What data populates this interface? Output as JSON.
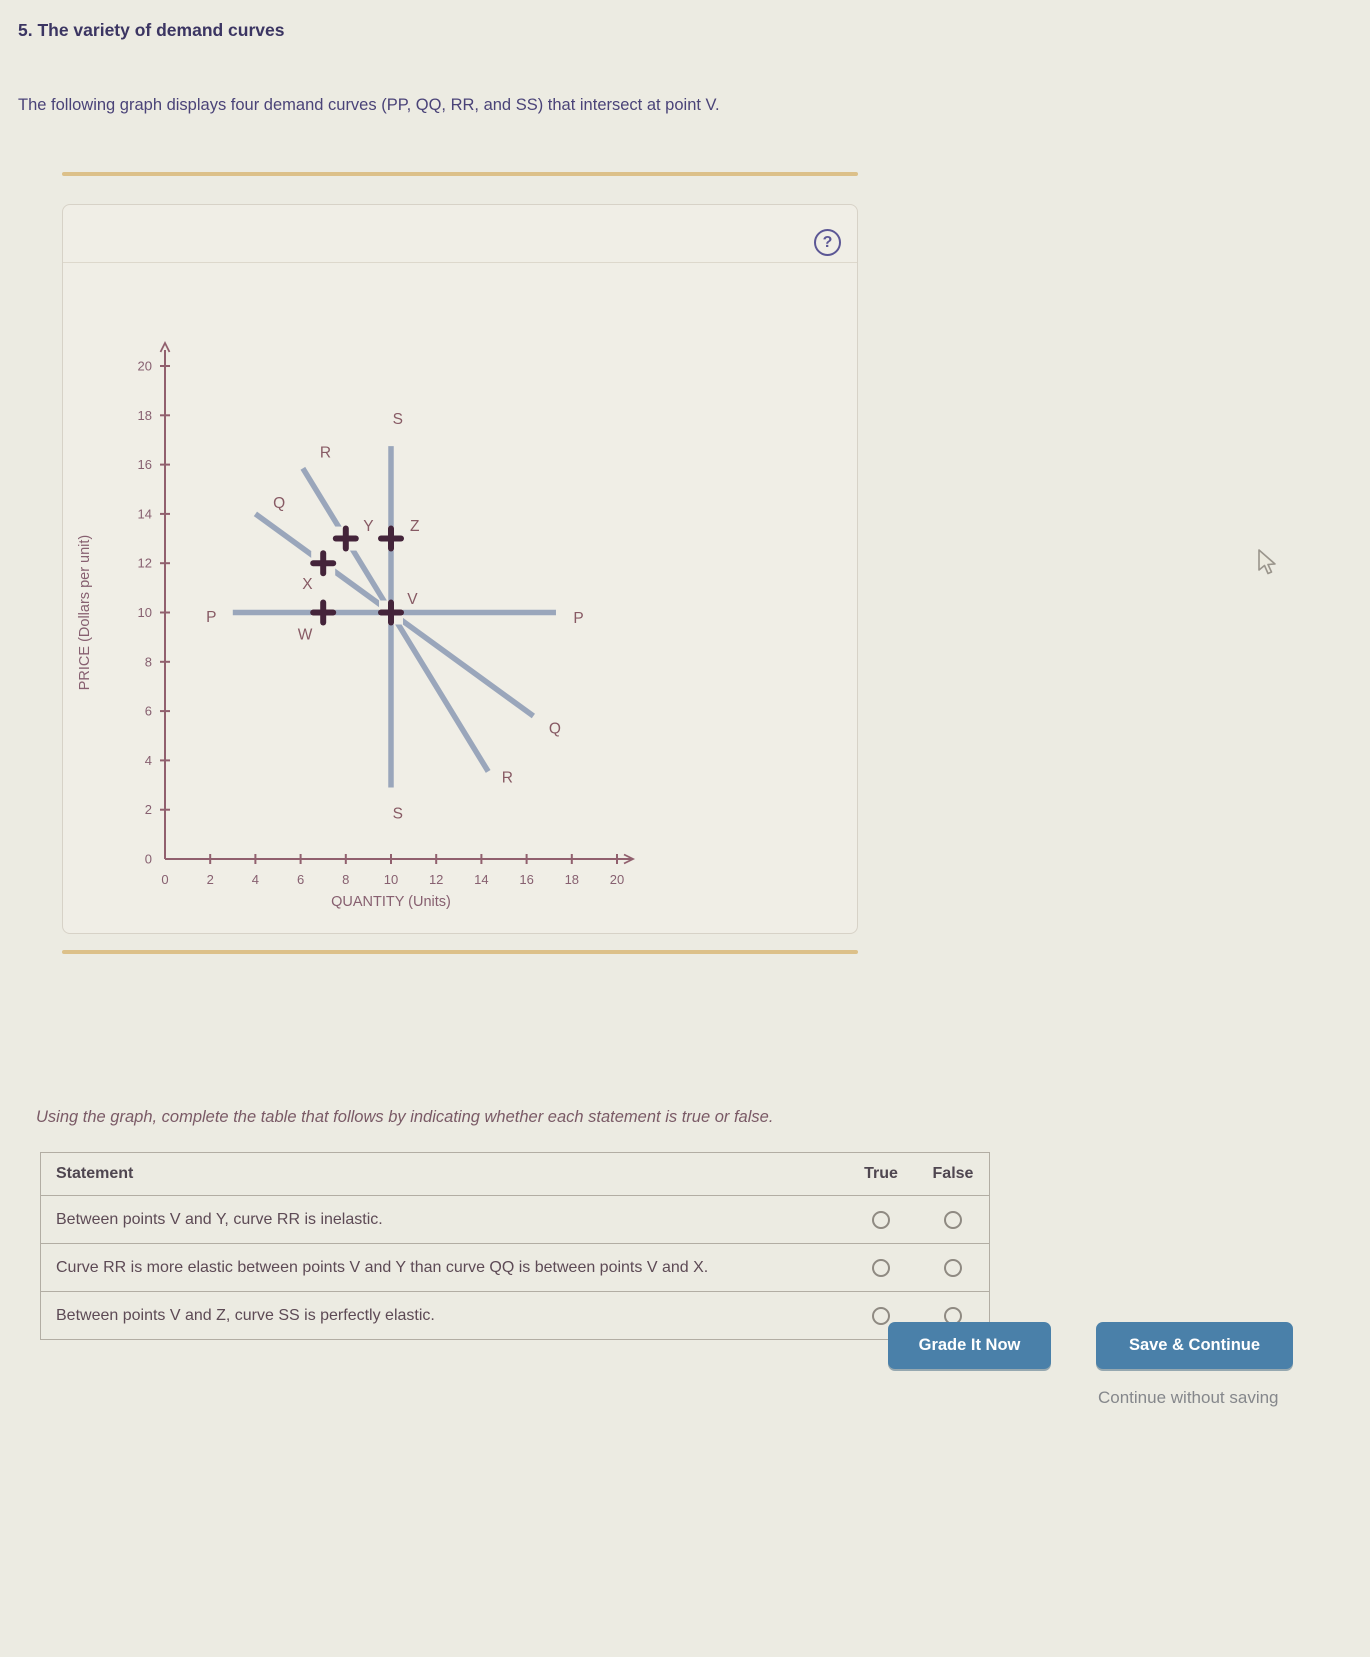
{
  "header": {
    "title": "5. The variety of demand curves",
    "intro": "The following graph displays four demand curves (PP, QQ, RR, and SS) that intersect at point V."
  },
  "panel": {
    "help_icon": "?"
  },
  "chart_data": {
    "type": "line",
    "title": "",
    "xlabel": "QUANTITY (Units)",
    "ylabel": "PRICE (Dollars per unit)",
    "xlim": [
      0,
      20
    ],
    "ylim": [
      0,
      20
    ],
    "xticks": [
      0,
      2,
      4,
      6,
      8,
      10,
      12,
      14,
      16,
      18,
      20
    ],
    "yticks": [
      0,
      2,
      4,
      6,
      8,
      10,
      12,
      14,
      16,
      18,
      20
    ],
    "grid": false,
    "legend": "none",
    "series": [
      {
        "name": "PP",
        "description": "perfectly elastic horizontal demand curve at price 10",
        "points": [
          [
            3.0,
            10
          ],
          [
            17.3,
            10
          ]
        ],
        "labels": [
          {
            "text": "P",
            "x": 2.05,
            "y": 9.82
          },
          {
            "text": "P",
            "x": 18.3,
            "y": 9.78
          }
        ]
      },
      {
        "name": "QQ",
        "description": "flat demand curve, slope -2/3, through V",
        "points": [
          [
            4.0,
            14.0
          ],
          [
            16.3,
            5.8
          ]
        ],
        "labels": [
          {
            "text": "Q",
            "x": 5.05,
            "y": 14.45
          },
          {
            "text": "Q",
            "x": 17.25,
            "y": 5.3
          }
        ]
      },
      {
        "name": "RR",
        "description": "steeper demand curve, slope -3/2, through V",
        "points": [
          [
            6.1,
            15.85
          ],
          [
            14.3,
            3.55
          ]
        ],
        "labels": [
          {
            "text": "R",
            "x": 7.1,
            "y": 16.5
          },
          {
            "text": "R",
            "x": 15.15,
            "y": 3.3
          }
        ]
      },
      {
        "name": "SS",
        "description": "perfectly inelastic vertical demand curve at quantity 10",
        "points": [
          [
            10,
            16.75
          ],
          [
            10,
            2.9
          ]
        ],
        "labels": [
          {
            "text": "S",
            "x": 10.3,
            "y": 17.85
          },
          {
            "text": "S",
            "x": 10.3,
            "y": 1.85
          }
        ]
      }
    ],
    "markers": [
      {
        "name": "V",
        "x": 10,
        "y": 10,
        "label_dx": 0.95,
        "label_dy": 0.55
      },
      {
        "name": "W",
        "x": 7,
        "y": 10,
        "label_dx": -0.8,
        "label_dy": -0.9
      },
      {
        "name": "X",
        "x": 7,
        "y": 12,
        "label_dx": -0.7,
        "label_dy": -0.85
      },
      {
        "name": "Y",
        "x": 8,
        "y": 13,
        "label_dx": 1.0,
        "label_dy": 0.5
      },
      {
        "name": "Z",
        "x": 10,
        "y": 13,
        "label_dx": 1.05,
        "label_dy": 0.5
      }
    ],
    "colors": {
      "curve": "#9aa6bb",
      "axis": "#91606e",
      "tick_label": "#876070",
      "letter": "#875a64",
      "marker": "#44243a",
      "halo": "#f0eee6"
    }
  },
  "instruction": "Using the graph, complete the table that follows by indicating whether each statement is true or false.",
  "table": {
    "headers": {
      "statement": "Statement",
      "true_label": "True",
      "false_label": "False"
    },
    "rows": [
      {
        "statement": "Between points V and Y, curve RR is inelastic."
      },
      {
        "statement": "Curve RR is more elastic between points V and Y than curve QQ is between points V and X."
      },
      {
        "statement": "Between points V and Z, curve SS is perfectly elastic."
      }
    ]
  },
  "actions": {
    "grade": "Grade It Now",
    "save": "Save & Continue",
    "continue_without": "Continue without saving"
  },
  "theme": {
    "page_bg": "#ecebe2",
    "panel_bg": "#f0eee6",
    "gold_accent": "#dcc089",
    "button_blue": "#4a80a9",
    "title_color": "#3b3562"
  }
}
